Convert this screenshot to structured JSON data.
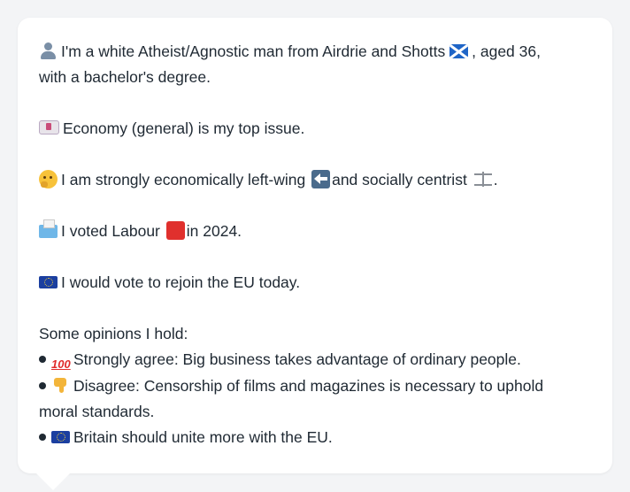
{
  "profile": {
    "intro_text": "I'm a white Atheist/Agnostic man from Airdrie and Shotts",
    "intro_rest": ", aged 36,",
    "intro_line2": "with a bachelor's degree.",
    "top_issue": "Economy (general) is my top issue.",
    "ideology_a": "I am strongly economically left-wing",
    "ideology_b": "and socially centrist",
    "ideology_end": ".",
    "vote_a": "I voted Labour",
    "vote_b": "in 2024.",
    "eu": "I would vote to rejoin the EU today.",
    "opinions_header": "Some opinions I hold:",
    "opinions": [
      {
        "icon": "hundred-points-icon",
        "text": "Strongly agree: Big business takes advantage of ordinary people."
      },
      {
        "icon": "thumbs-down-icon",
        "text": "Disagree: Censorship of films and magazines is necessary to uphold"
      },
      {
        "icon": "eu-flag-icon",
        "text": "Britain should unite more with the EU."
      }
    ],
    "opinion2_line2": "moral standards.",
    "hundred_glyph": "100"
  },
  "colors": {
    "card_background": "#ffffff",
    "page_background": "#f3f4f6",
    "text": "#1f2933",
    "labour_red": "#e0302d",
    "eu_blue": "#1b3fa0"
  }
}
